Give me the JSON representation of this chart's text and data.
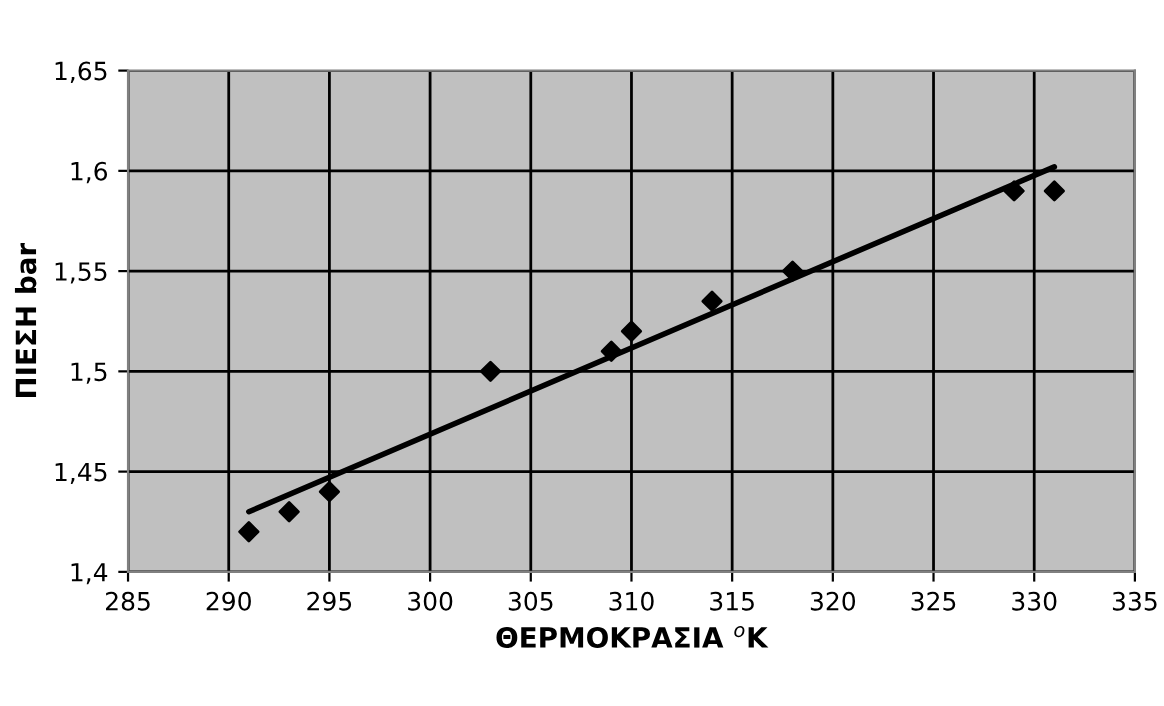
{
  "chart_data": {
    "type": "scatter",
    "xlabel": "ΘΕΡΜΟΚΡΑΣΙΑ $^{o}$K",
    "ylabel": "ΠΙΕΣΗ bar",
    "series": [
      {
        "color": "#000000",
        "marker": "diamond",
        "x": [
          291,
          293,
          295,
          303,
          309,
          310,
          314,
          318,
          329,
          331
        ],
        "values": [
          1.42,
          1.43,
          1.44,
          1.5,
          1.51,
          1.52,
          1.535,
          1.55,
          1.59,
          1.59
        ]
      },
      {
        "type": "line",
        "color": "#000000",
        "line_style": "solid",
        "x": [
          291,
          331
        ],
        "values": [
          1.43,
          1.602
        ]
      }
    ],
    "xlim": [
      285,
      335
    ],
    "xticks": [
      285,
      290,
      295,
      300,
      305,
      310,
      315,
      320,
      325,
      330,
      335
    ],
    "ylim": [
      1.4,
      1.65
    ],
    "yticks": [
      {
        "value": 1.4,
        "label": "1,4"
      },
      {
        "value": 1.45,
        "label": "1,45"
      },
      {
        "value": 1.5,
        "label": "1,5"
      },
      {
        "value": 1.55,
        "label": "1,55"
      },
      {
        "value": 1.6,
        "label": "1,6"
      },
      {
        "value": 1.65,
        "label": "1,65"
      }
    ],
    "grid": true
  }
}
